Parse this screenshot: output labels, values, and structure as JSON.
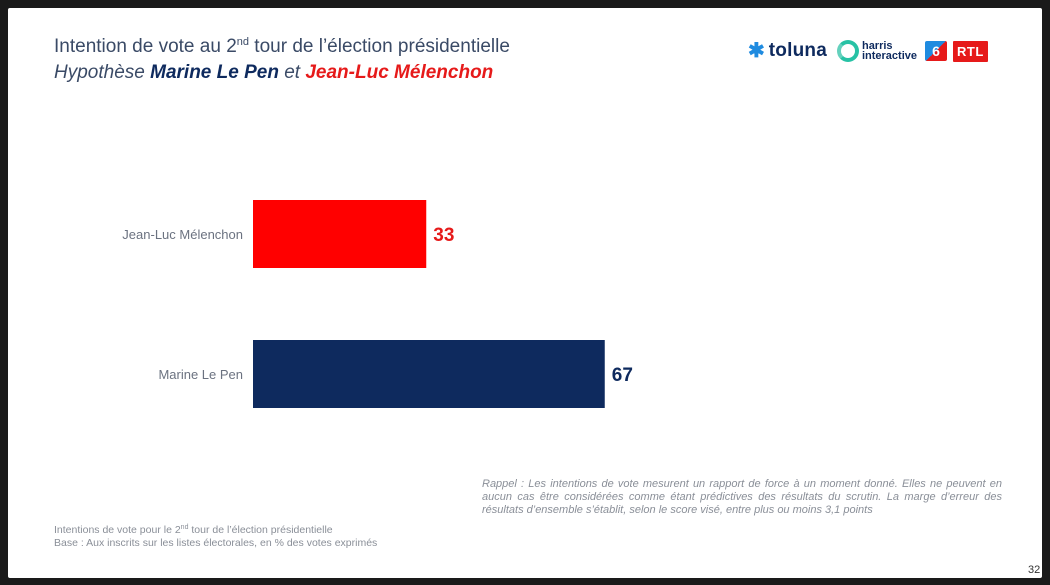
{
  "title": {
    "prefix": "Intention de vote au 2",
    "sup": "nd",
    "suffix": " tour de l’élection présidentielle"
  },
  "subtitle": {
    "part1": "Hypothèse ",
    "candidate1": "Marine Le Pen",
    "part2": " et ",
    "candidate2": "Jean-Luc Mélenchon"
  },
  "logos": {
    "toluna_icon": "snowflake-icon",
    "toluna": "toluna",
    "harris_line1": "harris",
    "harris_line2": "interactive",
    "m6": "6",
    "rtl": "RTL"
  },
  "chart_data": {
    "type": "bar",
    "orientation": "horizontal",
    "categories": [
      "Jean-Luc Mélenchon",
      "Marine Le Pen"
    ],
    "values": [
      33,
      67
    ],
    "colors": [
      "#ff0000",
      "#0e2a5e"
    ],
    "label_colors": [
      "#e61a1a",
      "#0e2a5e"
    ],
    "xlim": [
      0,
      100
    ],
    "grid": false
  },
  "note": "Rappel : Les intentions de vote mesurent un rapport de force à un moment donné. Elles ne peuvent en aucun cas être considérées comme étant prédictives des résultats du scrutin. La marge d’erreur des résultats d’ensemble s’établit, selon le score visé, entre plus ou moins 3,1 points",
  "footer": {
    "line1_prefix": "Intentions de vote pour le 2",
    "line1_sup": "nd",
    "line1_suffix": " tour de l’élection présidentielle",
    "line2": "Base : Aux inscrits sur les listes électorales, en % des votes exprimés"
  },
  "page_number": "32"
}
